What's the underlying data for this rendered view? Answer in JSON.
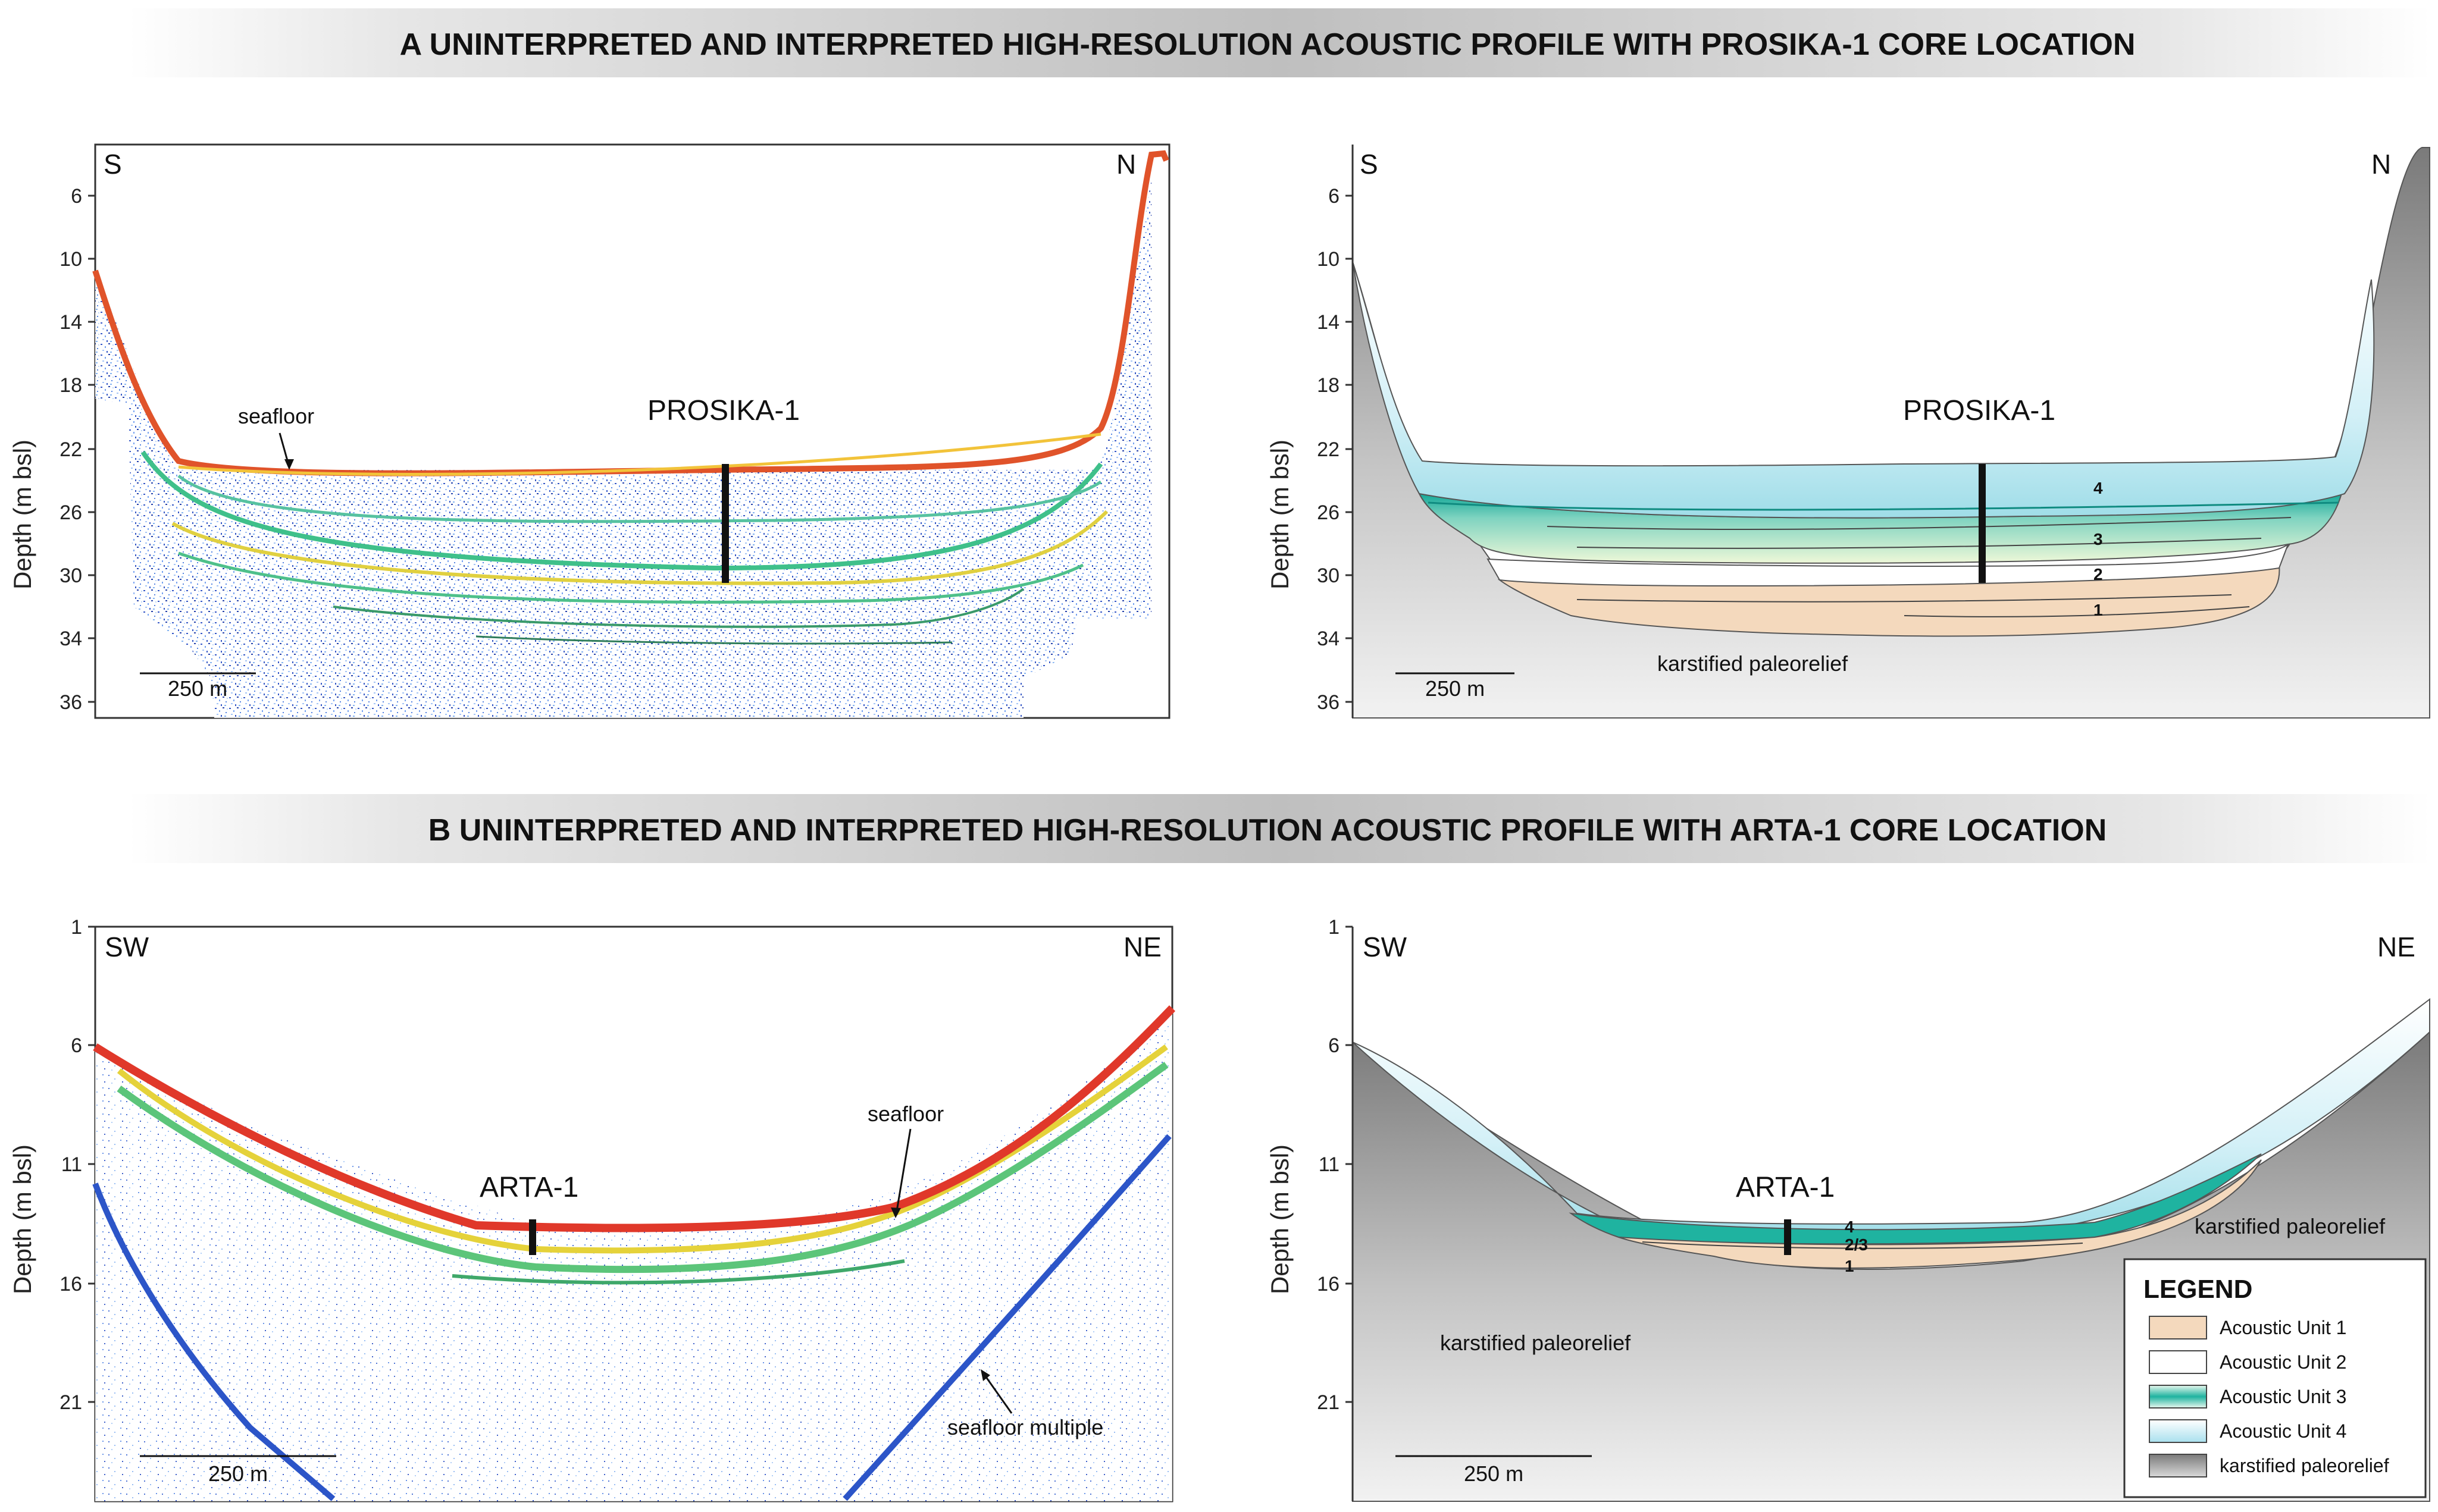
{
  "banners": {
    "a": "A    UNINTERPRETED AND INTERPRETED HIGH-RESOLUTION ACOUSTIC PROFILE WITH PROSIKA-1 CORE LOCATION",
    "b": "B    UNINTERPRETED AND INTERPRETED HIGH-RESOLUTION ACOUSTIC PROFILE WITH ARTA-1 CORE LOCATION"
  },
  "axis_label": "Depth (m bsl)",
  "panel_a": {
    "ticks": [
      "6",
      "10",
      "14",
      "18",
      "22",
      "26",
      "30",
      "34",
      "36"
    ],
    "dir_left": "S",
    "dir_right": "N",
    "core": "PROSIKA-1",
    "scale": "250 m",
    "seafloor": "seafloor",
    "karst": "karstified paleorelief",
    "units": [
      "4",
      "3",
      "2",
      "1"
    ]
  },
  "panel_b": {
    "ticks": [
      "1",
      "6",
      "11",
      "16",
      "21"
    ],
    "dir_left": "SW",
    "dir_right": "NE",
    "core": "ARTA-1",
    "scale": "250 m",
    "seafloor": "seafloor",
    "multiple": "seafloor multiple",
    "karst_left": "karstified paleorelief",
    "karst_right": "karstified paleorelief",
    "units": [
      "4",
      "2/3",
      "1"
    ]
  },
  "legend": {
    "title": "LEGEND",
    "items": [
      {
        "label": "Acoustic Unit 1",
        "color": "#f4d9bd"
      },
      {
        "label": "Acoustic Unit 2",
        "color": "#ffffff"
      },
      {
        "label": "Acoustic Unit 3",
        "color": "#1fb3a0"
      },
      {
        "label": "Acoustic Unit 4",
        "color": "#c9ecf5"
      },
      {
        "label": "karstified paleorelief",
        "color": "#8a8a8a"
      }
    ]
  }
}
